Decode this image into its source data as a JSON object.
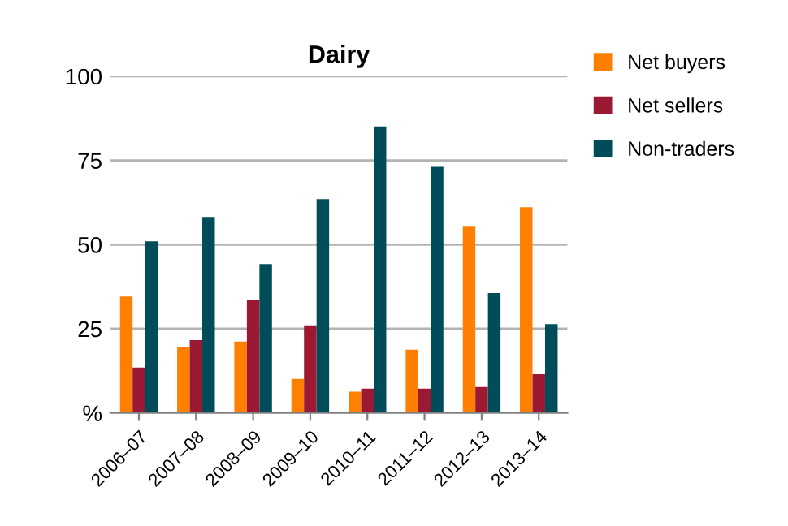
{
  "chart_data": {
    "type": "bar",
    "title": "Dairy",
    "categories": [
      "2006–07",
      "2007–08",
      "2008–09",
      "2009–10",
      "2010–11",
      "2011–12",
      "2012–13",
      "2013–14"
    ],
    "series": [
      {
        "name": "Net buyers",
        "color": "#ff7f00",
        "values": [
          34.6,
          19.7,
          21.2,
          10.1,
          6.3,
          18.8,
          55.3,
          61.1
        ]
      },
      {
        "name": "Net sellers",
        "color": "#9b1932",
        "values": [
          13.5,
          21.6,
          33.7,
          26,
          7.2,
          7.2,
          7.7,
          11.5
        ]
      },
      {
        "name": "Non-traders",
        "color": "#004d59",
        "values": [
          51,
          58.2,
          44.2,
          63.5,
          85.1,
          73.1,
          35.6,
          26.4
        ]
      }
    ],
    "ylim": [
      0,
      100
    ],
    "yticks": [
      {
        "value": 0,
        "label": "%"
      },
      25,
      50,
      75,
      100
    ],
    "grid": "y",
    "legend": "top right"
  }
}
